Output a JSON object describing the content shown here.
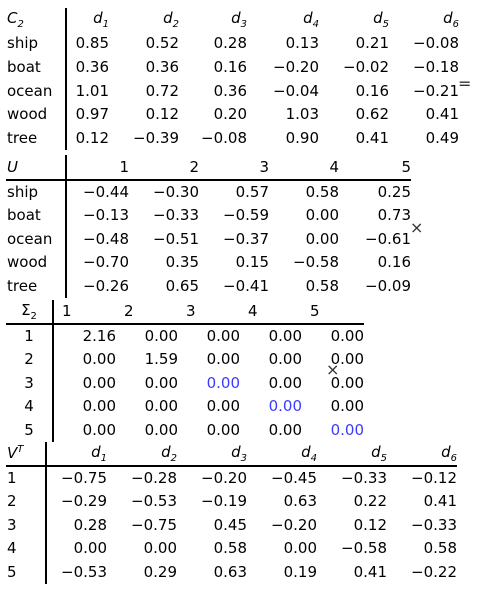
{
  "c2": {
    "corner": "C",
    "corner_sub": "2",
    "cols": [
      {
        "base": "d",
        "sub": "1"
      },
      {
        "base": "d",
        "sub": "2"
      },
      {
        "base": "d",
        "sub": "3"
      },
      {
        "base": "d",
        "sub": "4"
      },
      {
        "base": "d",
        "sub": "5"
      },
      {
        "base": "d",
        "sub": "6"
      }
    ],
    "rows": [
      {
        "label": "ship",
        "values": [
          "0.85",
          "0.52",
          "0.28",
          "0.13",
          "0.21",
          "−0.08"
        ]
      },
      {
        "label": "boat",
        "values": [
          "0.36",
          "0.36",
          "0.16",
          "−0.20",
          "−0.02",
          "−0.18"
        ]
      },
      {
        "label": "ocean",
        "values": [
          "1.01",
          "0.72",
          "0.36",
          "−0.04",
          "0.16",
          "−0.21"
        ]
      },
      {
        "label": "wood",
        "values": [
          "0.97",
          "0.12",
          "0.20",
          "1.03",
          "0.62",
          "0.41"
        ]
      },
      {
        "label": "tree",
        "values": [
          "0.12",
          "−0.39",
          "−0.08",
          "0.90",
          "0.41",
          "0.49"
        ]
      }
    ]
  },
  "u": {
    "corner": "U",
    "cols": [
      "1",
      "2",
      "3",
      "4",
      "5"
    ],
    "rows": [
      {
        "label": "ship",
        "values": [
          "−0.44",
          "−0.30",
          "0.57",
          "0.58",
          "0.25"
        ]
      },
      {
        "label": "boat",
        "values": [
          "−0.13",
          "−0.33",
          "−0.59",
          "0.00",
          "0.73"
        ]
      },
      {
        "label": "ocean",
        "values": [
          "−0.48",
          "−0.51",
          "−0.37",
          "0.00",
          "−0.61"
        ]
      },
      {
        "label": "wood",
        "values": [
          "−0.70",
          "0.35",
          "0.15",
          "−0.58",
          "0.16"
        ]
      },
      {
        "label": "tree",
        "values": [
          "−0.26",
          "0.65",
          "−0.41",
          "0.58",
          "−0.09"
        ]
      }
    ]
  },
  "sigma": {
    "corner": "Σ",
    "corner_sub": "2",
    "cols": [
      "1",
      "2",
      "3",
      "4",
      "5"
    ],
    "rows": [
      {
        "label": "1",
        "values": [
          "2.16",
          "0.00",
          "0.00",
          "0.00",
          "0.00"
        ]
      },
      {
        "label": "2",
        "values": [
          "0.00",
          "1.59",
          "0.00",
          "0.00",
          "0.00"
        ]
      },
      {
        "label": "3",
        "values": [
          "0.00",
          "0.00",
          "0.00",
          "0.00",
          "0.00"
        ]
      },
      {
        "label": "4",
        "values": [
          "0.00",
          "0.00",
          "0.00",
          "0.00",
          "0.00"
        ]
      },
      {
        "label": "5",
        "values": [
          "0.00",
          "0.00",
          "0.00",
          "0.00",
          "0.00"
        ]
      }
    ],
    "highlight_color": "#3b3bff"
  },
  "vt": {
    "corner": "V",
    "corner_sup": "T",
    "cols": [
      {
        "base": "d",
        "sub": "1"
      },
      {
        "base": "d",
        "sub": "2"
      },
      {
        "base": "d",
        "sub": "3"
      },
      {
        "base": "d",
        "sub": "4"
      },
      {
        "base": "d",
        "sub": "5"
      },
      {
        "base": "d",
        "sub": "6"
      }
    ],
    "rows": [
      {
        "label": "1",
        "values": [
          "−0.75",
          "−0.28",
          "−0.20",
          "−0.45",
          "−0.33",
          "−0.12"
        ]
      },
      {
        "label": "2",
        "values": [
          "−0.29",
          "−0.53",
          "−0.19",
          "0.63",
          "0.22",
          "0.41"
        ]
      },
      {
        "label": "3",
        "values": [
          "0.28",
          "−0.75",
          "0.45",
          "−0.20",
          "0.12",
          "−0.33"
        ]
      },
      {
        "label": "4",
        "values": [
          "0.00",
          "0.00",
          "0.58",
          "0.00",
          "−0.58",
          "0.58"
        ]
      },
      {
        "label": "5",
        "values": [
          "−0.53",
          "0.29",
          "0.63",
          "0.19",
          "0.41",
          "−0.22"
        ]
      }
    ]
  },
  "operators": {
    "equals": "=",
    "times_1": "×",
    "times_2": "×"
  }
}
